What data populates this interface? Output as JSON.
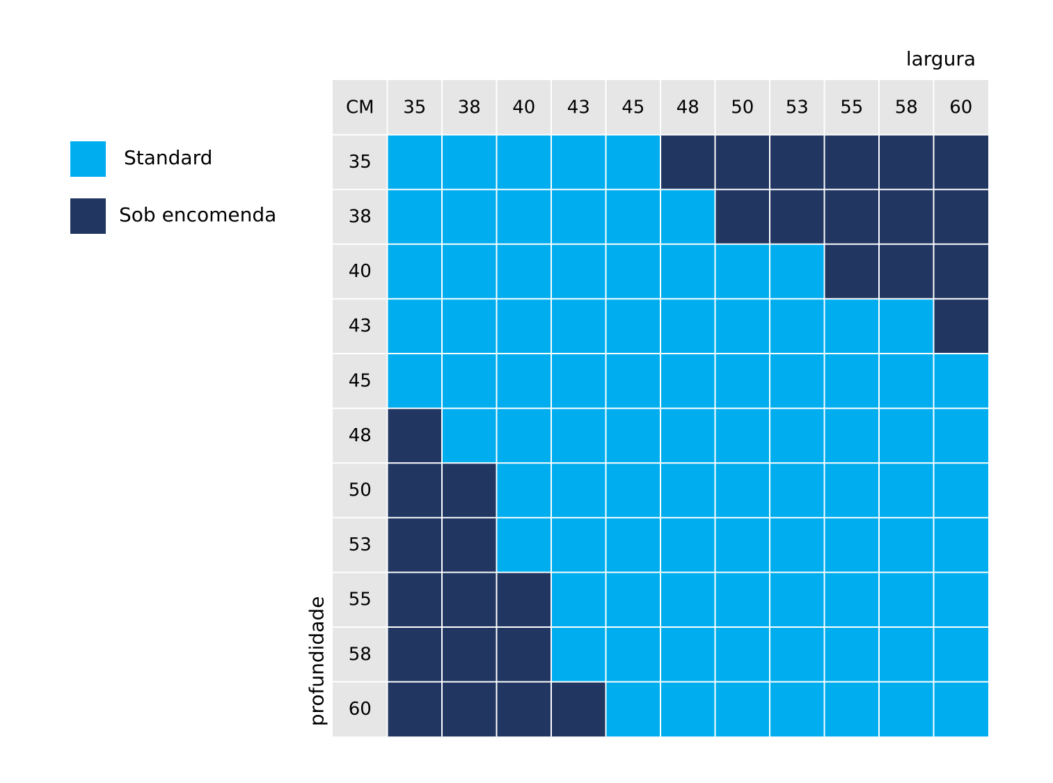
{
  "legend": {
    "standard": {
      "label": "Standard",
      "color": "#00aeef"
    },
    "custom": {
      "label": "Sob encomenda",
      "color": "#213762"
    }
  },
  "chart_data": {
    "type": "heatmap",
    "corner_label": "CM",
    "xlabel": "largura",
    "ylabel": "profundidade",
    "x_categories": [
      "35",
      "38",
      "40",
      "43",
      "45",
      "48",
      "50",
      "53",
      "55",
      "58",
      "60"
    ],
    "y_categories": [
      "35",
      "38",
      "40",
      "43",
      "45",
      "48",
      "50",
      "53",
      "55",
      "58",
      "60"
    ],
    "value_legend": {
      "S": "Standard",
      "E": "Sob encomenda"
    },
    "cells": [
      [
        "S",
        "S",
        "S",
        "S",
        "S",
        "E",
        "E",
        "E",
        "E",
        "E",
        "E"
      ],
      [
        "S",
        "S",
        "S",
        "S",
        "S",
        "S",
        "E",
        "E",
        "E",
        "E",
        "E"
      ],
      [
        "S",
        "S",
        "S",
        "S",
        "S",
        "S",
        "S",
        "S",
        "E",
        "E",
        "E"
      ],
      [
        "S",
        "S",
        "S",
        "S",
        "S",
        "S",
        "S",
        "S",
        "S",
        "S",
        "E"
      ],
      [
        "S",
        "S",
        "S",
        "S",
        "S",
        "S",
        "S",
        "S",
        "S",
        "S",
        "S"
      ],
      [
        "E",
        "S",
        "S",
        "S",
        "S",
        "S",
        "S",
        "S",
        "S",
        "S",
        "S"
      ],
      [
        "E",
        "E",
        "S",
        "S",
        "S",
        "S",
        "S",
        "S",
        "S",
        "S",
        "S"
      ],
      [
        "E",
        "E",
        "S",
        "S",
        "S",
        "S",
        "S",
        "S",
        "S",
        "S",
        "S"
      ],
      [
        "E",
        "E",
        "E",
        "S",
        "S",
        "S",
        "S",
        "S",
        "S",
        "S",
        "S"
      ],
      [
        "E",
        "E",
        "E",
        "S",
        "S",
        "S",
        "S",
        "S",
        "S",
        "S",
        "S"
      ],
      [
        "E",
        "E",
        "E",
        "E",
        "S",
        "S",
        "S",
        "S",
        "S",
        "S",
        "S"
      ]
    ],
    "header_color": "#e6e6e6",
    "grid_line_color": "#ffffff",
    "legend_position": "left"
  }
}
